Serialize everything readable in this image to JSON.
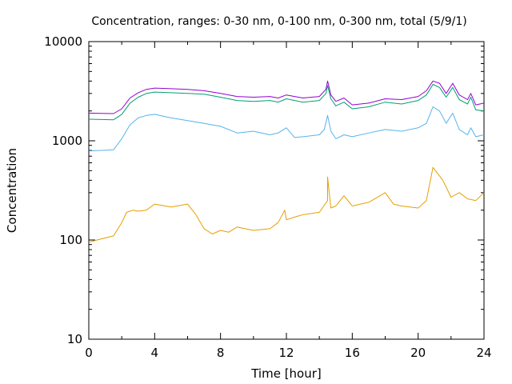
{
  "chart_data": {
    "type": "line",
    "title": "Concentration, ranges: 0-30 nm, 0-100 nm, 0-300 nm, total (5/9/1)",
    "xlabel": "Time [hour]",
    "ylabel": "Concentration",
    "xlim": [
      0,
      24
    ],
    "ylim": [
      10,
      10000
    ],
    "yscale": "log",
    "grid": false,
    "x_ticks": [
      0,
      4,
      8,
      12,
      16,
      20,
      24
    ],
    "x_tick_labels": [
      "0",
      "4",
      "8",
      "12",
      "16",
      "20",
      "24"
    ],
    "y_ticks": [
      10,
      100,
      1000,
      10000
    ],
    "y_tick_labels": [
      "10",
      "100",
      "1000",
      "10000"
    ],
    "series": [
      {
        "color": "#9400d3",
        "points": [
          [
            0,
            1900
          ],
          [
            1.5,
            1880
          ],
          [
            2,
            2100
          ],
          [
            2.5,
            2700
          ],
          [
            3,
            3050
          ],
          [
            3.5,
            3300
          ],
          [
            4,
            3400
          ],
          [
            5,
            3350
          ],
          [
            6,
            3300
          ],
          [
            7,
            3200
          ],
          [
            8,
            3000
          ],
          [
            9,
            2800
          ],
          [
            10,
            2750
          ],
          [
            11,
            2800
          ],
          [
            11.5,
            2700
          ],
          [
            12,
            2900
          ],
          [
            13,
            2700
          ],
          [
            14,
            2800
          ],
          [
            14.4,
            3300
          ],
          [
            14.5,
            4000
          ],
          [
            14.7,
            2900
          ],
          [
            15,
            2500
          ],
          [
            15.5,
            2700
          ],
          [
            16,
            2300
          ],
          [
            17,
            2400
          ],
          [
            18,
            2650
          ],
          [
            19,
            2600
          ],
          [
            20,
            2800
          ],
          [
            20.5,
            3200
          ],
          [
            20.9,
            4000
          ],
          [
            21.3,
            3800
          ],
          [
            21.7,
            3000
          ],
          [
            22.1,
            3800
          ],
          [
            22.5,
            2900
          ],
          [
            23,
            2600
          ],
          [
            23.2,
            3000
          ],
          [
            23.5,
            2300
          ],
          [
            24,
            2400
          ]
        ]
      },
      {
        "color": "#009e73",
        "points": [
          [
            0,
            1650
          ],
          [
            1.5,
            1630
          ],
          [
            2,
            1850
          ],
          [
            2.5,
            2400
          ],
          [
            3,
            2750
          ],
          [
            3.5,
            3000
          ],
          [
            4,
            3100
          ],
          [
            5,
            3050
          ],
          [
            6,
            3000
          ],
          [
            7,
            2950
          ],
          [
            8,
            2750
          ],
          [
            9,
            2550
          ],
          [
            10,
            2500
          ],
          [
            11,
            2550
          ],
          [
            11.5,
            2450
          ],
          [
            12,
            2650
          ],
          [
            13,
            2450
          ],
          [
            14,
            2550
          ],
          [
            14.4,
            3000
          ],
          [
            14.5,
            3600
          ],
          [
            14.7,
            2650
          ],
          [
            15,
            2250
          ],
          [
            15.5,
            2450
          ],
          [
            16,
            2100
          ],
          [
            17,
            2200
          ],
          [
            18,
            2450
          ],
          [
            19,
            2350
          ],
          [
            20,
            2550
          ],
          [
            20.5,
            2900
          ],
          [
            20.9,
            3700
          ],
          [
            21.3,
            3450
          ],
          [
            21.7,
            2750
          ],
          [
            22.1,
            3450
          ],
          [
            22.5,
            2600
          ],
          [
            23,
            2350
          ],
          [
            23.2,
            2750
          ],
          [
            23.5,
            2050
          ],
          [
            24,
            2000
          ]
        ]
      },
      {
        "color": "#56b4e9",
        "points": [
          [
            0,
            790
          ],
          [
            1.5,
            810
          ],
          [
            2,
            1050
          ],
          [
            2.5,
            1450
          ],
          [
            3,
            1700
          ],
          [
            3.5,
            1800
          ],
          [
            4,
            1850
          ],
          [
            5,
            1700
          ],
          [
            6,
            1600
          ],
          [
            7,
            1500
          ],
          [
            8,
            1400
          ],
          [
            9,
            1200
          ],
          [
            10,
            1250
          ],
          [
            11,
            1150
          ],
          [
            11.5,
            1200
          ],
          [
            12,
            1350
          ],
          [
            12.5,
            1080
          ],
          [
            13,
            1100
          ],
          [
            14,
            1150
          ],
          [
            14.3,
            1300
          ],
          [
            14.5,
            1800
          ],
          [
            14.7,
            1250
          ],
          [
            15,
            1050
          ],
          [
            15.5,
            1150
          ],
          [
            16,
            1100
          ],
          [
            17,
            1200
          ],
          [
            18,
            1300
          ],
          [
            19,
            1250
          ],
          [
            20,
            1350
          ],
          [
            20.5,
            1500
          ],
          [
            20.9,
            2200
          ],
          [
            21.3,
            2000
          ],
          [
            21.7,
            1500
          ],
          [
            22.1,
            1900
          ],
          [
            22.5,
            1300
          ],
          [
            23,
            1150
          ],
          [
            23.2,
            1350
          ],
          [
            23.5,
            1100
          ],
          [
            24,
            1150
          ]
        ]
      },
      {
        "color": "#e69f00",
        "points": [
          [
            0,
            95
          ],
          [
            0.5,
            100
          ],
          [
            1,
            105
          ],
          [
            1.5,
            110
          ],
          [
            2,
            150
          ],
          [
            2.3,
            190
          ],
          [
            2.7,
            200
          ],
          [
            3,
            195
          ],
          [
            3.5,
            200
          ],
          [
            4,
            230
          ],
          [
            5,
            215
          ],
          [
            6,
            230
          ],
          [
            6.5,
            180
          ],
          [
            7,
            130
          ],
          [
            7.5,
            115
          ],
          [
            8,
            125
          ],
          [
            8.5,
            120
          ],
          [
            9,
            135
          ],
          [
            10,
            125
          ],
          [
            11,
            130
          ],
          [
            11.5,
            150
          ],
          [
            11.9,
            200
          ],
          [
            12,
            160
          ],
          [
            12.5,
            170
          ],
          [
            13,
            180
          ],
          [
            14,
            190
          ],
          [
            14.5,
            250
          ],
          [
            14.5,
            430
          ],
          [
            14.7,
            210
          ],
          [
            15,
            220
          ],
          [
            15.5,
            280
          ],
          [
            16,
            220
          ],
          [
            16.5,
            230
          ],
          [
            17,
            240
          ],
          [
            18,
            300
          ],
          [
            18.5,
            230
          ],
          [
            19,
            220
          ],
          [
            20,
            210
          ],
          [
            20.5,
            250
          ],
          [
            20.9,
            540
          ],
          [
            21.5,
            400
          ],
          [
            22,
            270
          ],
          [
            22.5,
            300
          ],
          [
            23,
            260
          ],
          [
            23.5,
            250
          ],
          [
            24,
            300
          ]
        ]
      }
    ]
  }
}
